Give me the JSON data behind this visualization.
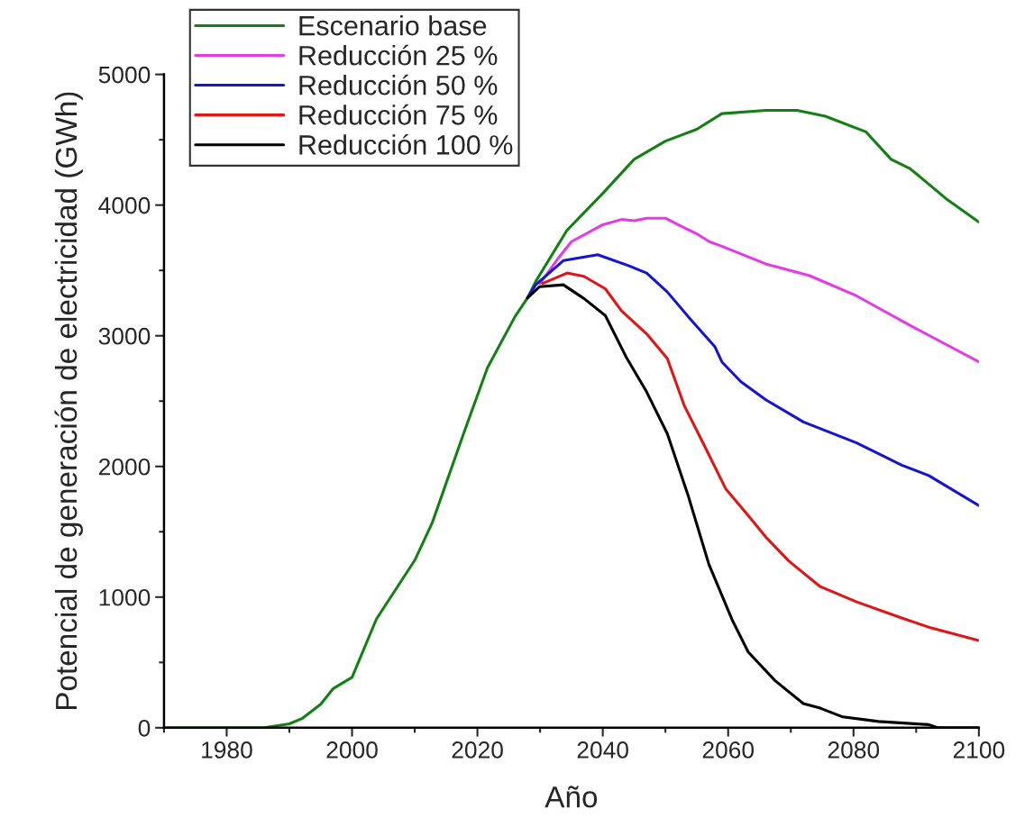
{
  "chart_data": {
    "type": "line",
    "xlabel": "Año",
    "ylabel": "Potencial de generación de electricidad (GWh)",
    "xlim": [
      1970,
      2100
    ],
    "xticks": [
      1980,
      2000,
      2020,
      2040,
      2060,
      2080,
      2100
    ],
    "ylim": [
      0,
      5000
    ],
    "yticks": [
      0,
      1000,
      2000,
      3000,
      4000,
      5000
    ],
    "grid": false,
    "legend": "top left",
    "line_style": "solid",
    "marker": "none",
    "series": [
      {
        "name": "Escenario base",
        "color": "#138013",
        "x": [
          1970,
          1986,
          1990,
          1992,
          1995,
          1997,
          2000,
          2003.9,
          2010,
          2012.8,
          2017.8,
          2021.6,
          2026,
          2028,
          2029.3,
          2034.3,
          2040,
          2045,
          2050,
          2055,
          2059,
          2066,
          2071,
          2075.5,
          2082,
          2086,
          2089,
          2095,
          2100
        ],
        "values": [
          0,
          0,
          30,
          70,
          180,
          300,
          386,
          833,
          1281,
          1570,
          2252,
          2755,
          3147,
          3290,
          3416,
          3808,
          4090,
          4350,
          4490,
          4580,
          4700,
          4725,
          4725,
          4680,
          4560,
          4350,
          4280,
          4040,
          3870
        ]
      },
      {
        "name": "Reducción 25 %",
        "color": "#e23ce6",
        "x": [
          2030,
          2033,
          2035,
          2040,
          2043,
          2045,
          2047,
          2050,
          2052,
          2055,
          2057,
          2059,
          2066,
          2073,
          2080.5,
          2089,
          2100
        ],
        "values": [
          3400,
          3600,
          3720,
          3850,
          3890,
          3880,
          3900,
          3900,
          3850,
          3780,
          3720,
          3685,
          3550,
          3460,
          3305,
          3080,
          2800
        ]
      },
      {
        "name": "Reducción 50 %",
        "color": "#1515d0",
        "x": [
          2028,
          2029.3,
          2033.7,
          2039.2,
          2044.2,
          2047,
          2050.3,
          2054,
          2057.9,
          2059,
          2062,
          2066,
          2072,
          2080.5,
          2087.7,
          2092,
          2100
        ],
        "values": [
          3290,
          3390,
          3575,
          3620,
          3535,
          3480,
          3335,
          3125,
          2915,
          2800,
          2650,
          2510,
          2340,
          2180,
          2010,
          1930,
          1700
        ]
      },
      {
        "name": "Reducción 75 %",
        "color": "#e01616",
        "x": [
          2030.4,
          2034.3,
          2037,
          2040.4,
          2043,
          2047,
          2050.3,
          2053,
          2056.3,
          2059.6,
          2063.2,
          2066,
          2069.7,
          2074.7,
          2080.5,
          2087.7,
          2092,
          2100
        ],
        "values": [
          3400,
          3480,
          3455,
          3360,
          3190,
          3015,
          2825,
          2465,
          2150,
          1830,
          1625,
          1460,
          1275,
          1080,
          963,
          840,
          770,
          668
        ]
      },
      {
        "name": "Reducción 100 %",
        "color": "#000000",
        "x": [
          2028,
          2029.9,
          2033.7,
          2037,
          2040.4,
          2043.7,
          2047,
          2050.3,
          2053.6,
          2056.9,
          2060.6,
          2063.2,
          2067.5,
          2072,
          2074.7,
          2078.3,
          2084,
          2092,
          2093.5,
          2100
        ],
        "values": [
          3290,
          3375,
          3390,
          3285,
          3155,
          2840,
          2570,
          2250,
          1780,
          1255,
          830,
          580,
          360,
          185,
          150,
          83,
          48,
          24,
          0,
          0
        ]
      }
    ]
  }
}
